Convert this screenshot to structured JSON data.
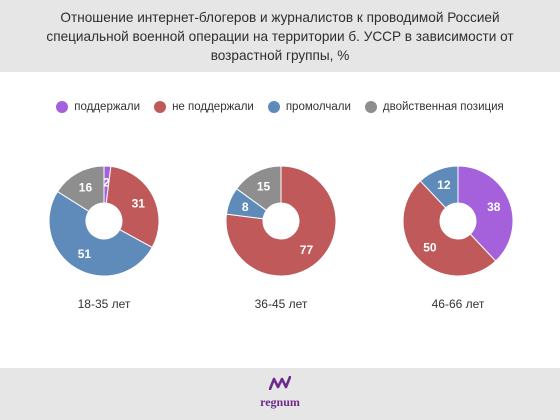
{
  "title": "Отношение интернет-блогеров и журналистов к проводимой Россией специальной военной операции на территории б. УССР в зависимости от возрастной группы, %",
  "colors": {
    "supported": "#a560dc",
    "not_supported": "#c05a5a",
    "silent": "#5f8bbb",
    "ambivalent": "#8e8e8e"
  },
  "legend": [
    {
      "label": "поддержали",
      "color": "#a560dc"
    },
    {
      "label": "не поддержали",
      "color": "#c05a5a"
    },
    {
      "label": "промолчали",
      "color": "#5f8bbb"
    },
    {
      "label": "двойственная позиция",
      "color": "#8e8e8e"
    }
  ],
  "chart_data": {
    "type": "pie",
    "variant": "donut",
    "series_order": [
      "поддержали",
      "не поддержали",
      "промолчали",
      "двойственная позиция"
    ],
    "charts": [
      {
        "label": "18-35 лет",
        "values": [
          2,
          31,
          51,
          16
        ]
      },
      {
        "label": "36-45 лет",
        "values": [
          0,
          77,
          8,
          15
        ]
      },
      {
        "label": "46-66 лет",
        "values": [
          38,
          50,
          12,
          0
        ]
      }
    ]
  },
  "footer": {
    "logo_text": "regnum",
    "logo_icon": "regnum-logo-icon"
  }
}
